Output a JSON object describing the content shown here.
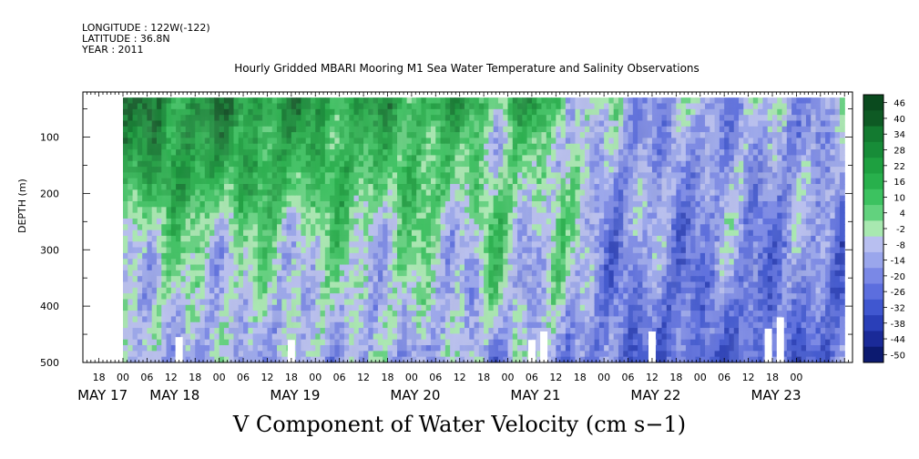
{
  "meta": {
    "longitude": "LONGITUDE : 122W(-122)",
    "latitude": "LATITUDE : 36.8N",
    "year": "YEAR : 2011"
  },
  "chart_data": {
    "type": "heatmap",
    "title": "Hourly Gridded MBARI Mooring M1 Sea Water Temperature and Salinity Observations",
    "bottom_title": "V Component of Water Velocity (cm s−1)",
    "ylabel": "DEPTH (m)",
    "y_axis": {
      "range": [
        20,
        500
      ],
      "inverted": true,
      "ticks": [
        100,
        200,
        300,
        400,
        500
      ],
      "tick_labels": [
        "100",
        "200",
        "300",
        "400",
        "500"
      ]
    },
    "x_axis": {
      "range_hours": [
        -10,
        182
      ],
      "hour_labels": [
        "18",
        "00",
        "06",
        "12",
        "18",
        "00",
        "06",
        "12",
        "18",
        "00",
        "06",
        "12",
        "18",
        "00",
        "06",
        "12",
        "18",
        "00",
        "06",
        "12",
        "18",
        "00",
        "06",
        "12",
        "18",
        "00",
        "06",
        "12",
        "18",
        "00"
      ],
      "hour_values": [
        -6,
        0,
        6,
        12,
        18,
        24,
        30,
        36,
        42,
        48,
        54,
        60,
        66,
        72,
        78,
        84,
        90,
        96,
        102,
        108,
        114,
        120,
        126,
        132,
        138,
        144,
        150,
        156,
        162,
        168
      ],
      "date_labels": [
        "MAY 17",
        "MAY 18",
        "MAY 19",
        "MAY 20",
        "MAY 21",
        "MAY 22",
        "MAY 23"
      ],
      "date_hours": [
        -6,
        12,
        42,
        72,
        102,
        132,
        162
      ]
    },
    "data_extent_hours": [
      0,
      180
    ],
    "colorbar": {
      "labels": [
        "46",
        "40",
        "34",
        "28",
        "22",
        "16",
        "10",
        "4",
        "-2",
        "-8",
        "-14",
        "-20",
        "-26",
        "-32",
        "-38",
        "-44",
        "-50"
      ],
      "colors": [
        "#0a4a1e",
        "#0e5a24",
        "#137a30",
        "#178c38",
        "#1ea040",
        "#28b04c",
        "#3cc260",
        "#62d27e",
        "#a8e8b0",
        "#b8bff0",
        "#9aa6ec",
        "#7a88e6",
        "#5c6ede",
        "#4057d0",
        "#2a3fb8",
        "#1a2a98",
        "#0c1a70"
      ]
    },
    "gaps": [
      {
        "hour": 14,
        "depth_top": 455
      },
      {
        "hour": 42,
        "depth_top": 460
      },
      {
        "hour": 102,
        "depth_top": 460
      },
      {
        "hour": 105,
        "depth_top": 445
      },
      {
        "hour": 132,
        "depth_top": 445
      },
      {
        "hour": 161,
        "depth_top": 440
      },
      {
        "hour": 164,
        "depth_top": 420
      }
    ]
  }
}
